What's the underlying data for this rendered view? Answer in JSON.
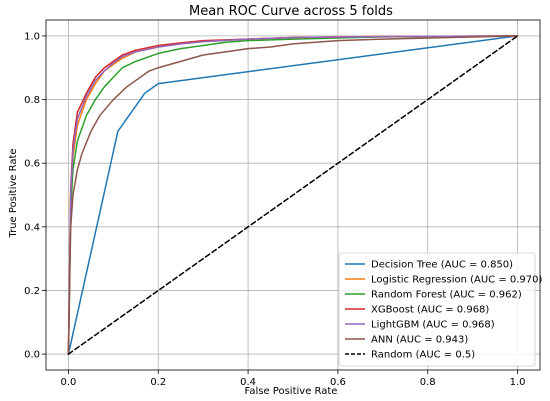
{
  "chart_data": {
    "type": "line",
    "title": "Mean ROC Curve across 5 folds",
    "xlabel": "False Positive Rate",
    "ylabel": "True Positive Rate",
    "xlim": [
      -0.05,
      1.05
    ],
    "ylim": [
      -0.05,
      1.05
    ],
    "xticks": [
      "0.0",
      "0.2",
      "0.4",
      "0.6",
      "0.8",
      "1.0"
    ],
    "yticks": [
      "0.0",
      "0.2",
      "0.4",
      "0.6",
      "0.8",
      "1.0"
    ],
    "grid": true,
    "legend_position": "lower-right",
    "series": [
      {
        "name": "Decision Tree (AUC = 0.850)",
        "color": "#1f77b4",
        "dash": "solid",
        "x": [
          0.0,
          0.11,
          0.17,
          0.2,
          1.0
        ],
        "y": [
          0.0,
          0.7,
          0.82,
          0.85,
          1.0
        ]
      },
      {
        "name": "Logistic Regression (AUC = 0.970)",
        "color": "#ff7f0e",
        "dash": "solid",
        "x": [
          0.0,
          0.005,
          0.01,
          0.02,
          0.04,
          0.06,
          0.08,
          0.1,
          0.12,
          0.15,
          0.2,
          0.25,
          0.3,
          0.4,
          0.5,
          0.7,
          1.0
        ],
        "y": [
          0.0,
          0.5,
          0.62,
          0.72,
          0.8,
          0.85,
          0.89,
          0.91,
          0.93,
          0.95,
          0.965,
          0.975,
          0.982,
          0.99,
          0.995,
          0.998,
          1.0
        ]
      },
      {
        "name": "Random Forest (AUC = 0.962)",
        "color": "#2ca02c",
        "dash": "solid",
        "x": [
          0.0,
          0.005,
          0.01,
          0.02,
          0.04,
          0.06,
          0.08,
          0.1,
          0.12,
          0.15,
          0.2,
          0.25,
          0.3,
          0.35,
          0.4,
          0.5,
          0.7,
          1.0
        ],
        "y": [
          0.0,
          0.45,
          0.58,
          0.67,
          0.75,
          0.8,
          0.84,
          0.87,
          0.9,
          0.92,
          0.945,
          0.96,
          0.97,
          0.98,
          0.985,
          0.99,
          0.997,
          1.0
        ]
      },
      {
        "name": "XGBoost (AUC = 0.968)",
        "color": "#d62728",
        "dash": "solid",
        "x": [
          0.0,
          0.005,
          0.01,
          0.02,
          0.04,
          0.06,
          0.08,
          0.1,
          0.12,
          0.15,
          0.2,
          0.25,
          0.3,
          0.4,
          0.5,
          0.7,
          1.0
        ],
        "y": [
          0.0,
          0.52,
          0.66,
          0.76,
          0.82,
          0.87,
          0.9,
          0.92,
          0.94,
          0.955,
          0.97,
          0.978,
          0.985,
          0.99,
          0.995,
          0.998,
          1.0
        ]
      },
      {
        "name": "LightGBM (AUC = 0.968)",
        "color": "#9467bd",
        "dash": "solid",
        "x": [
          0.0,
          0.005,
          0.01,
          0.02,
          0.04,
          0.06,
          0.08,
          0.1,
          0.12,
          0.15,
          0.2,
          0.25,
          0.3,
          0.4,
          0.5,
          0.7,
          1.0
        ],
        "y": [
          0.0,
          0.5,
          0.64,
          0.74,
          0.81,
          0.86,
          0.89,
          0.915,
          0.935,
          0.95,
          0.965,
          0.975,
          0.982,
          0.99,
          0.995,
          0.998,
          1.0
        ]
      },
      {
        "name": "ANN (AUC = 0.943)",
        "color": "#8c564b",
        "dash": "solid",
        "x": [
          0.0,
          0.005,
          0.01,
          0.02,
          0.03,
          0.05,
          0.07,
          0.1,
          0.13,
          0.15,
          0.18,
          0.2,
          0.25,
          0.3,
          0.35,
          0.4,
          0.45,
          0.5,
          0.6,
          0.7,
          0.85,
          1.0
        ],
        "y": [
          0.0,
          0.4,
          0.5,
          0.58,
          0.63,
          0.7,
          0.75,
          0.8,
          0.84,
          0.86,
          0.89,
          0.9,
          0.92,
          0.94,
          0.95,
          0.96,
          0.965,
          0.975,
          0.985,
          0.99,
          0.995,
          1.0
        ]
      },
      {
        "name": "Random (AUC = 0.5)",
        "color": "#000000",
        "dash": "dashed",
        "x": [
          0.0,
          1.0
        ],
        "y": [
          0.0,
          1.0
        ]
      }
    ]
  }
}
